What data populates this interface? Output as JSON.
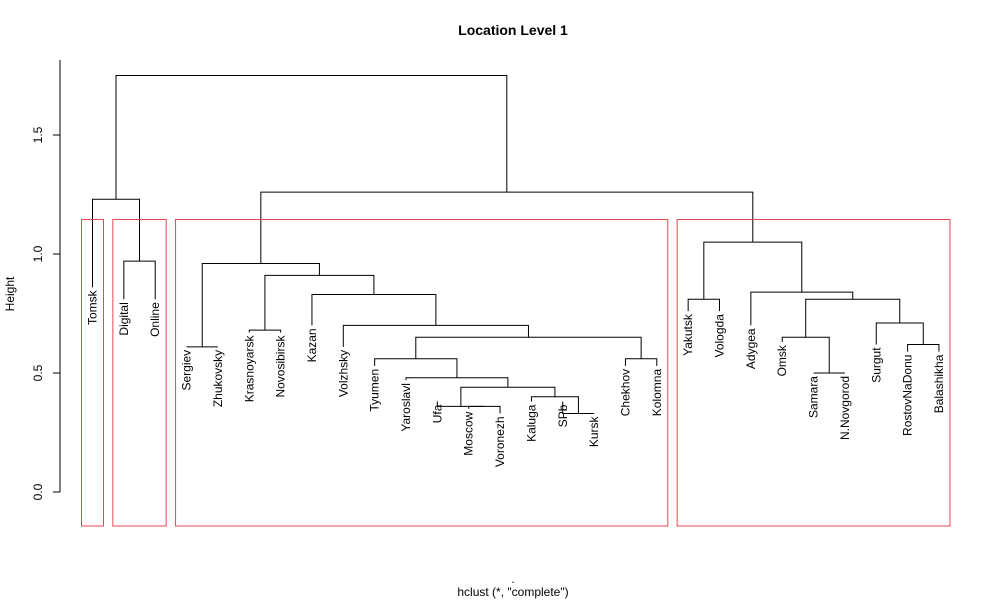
{
  "chart_data": {
    "type": "dendrogram",
    "title": "Location Level 1",
    "ylabel": "Height",
    "xlabel": "hclust (*, \"complete\")",
    "xlabel_top": ".",
    "ylim": [
      0,
      1.75
    ],
    "yticks": [
      0.0,
      0.5,
      1.0,
      1.5
    ],
    "ytick_labels": [
      "0.0",
      "0.5",
      "1.0",
      "1.5"
    ],
    "leaves": [
      "Tomsk",
      "Digital",
      "Online",
      "Sergiev",
      "Zhukovsky",
      "Krasnoyarsk",
      "Novosibirsk",
      "Kazan",
      "Volzhsky",
      "Tyumen",
      "Yaroslavl",
      "Ufa",
      "Moscow",
      "Voronezh",
      "Kaluga",
      "SPb",
      "Kursk",
      "Chekhov",
      "Kolomna",
      "Yakutsk",
      "Vologda",
      "Adygea",
      "Omsk",
      "Samara",
      "N.Novgorod",
      "Surgut",
      "RostovNaDonu",
      "Balashikha"
    ],
    "leaf_heights": [
      0.86,
      0.81,
      0.81,
      0.61,
      0.61,
      0.67,
      0.67,
      0.7,
      0.61,
      0.53,
      0.47,
      0.38,
      0.35,
      0.33,
      0.38,
      0.38,
      0.33,
      0.53,
      0.53,
      0.76,
      0.76,
      0.7,
      0.63,
      0.5,
      0.5,
      0.62,
      0.59,
      0.59
    ],
    "merges": [
      {
        "left": "Digital",
        "right": "Online",
        "height": 0.97
      },
      {
        "left": "Tomsk",
        "right": "Digital+Online",
        "height": 1.23
      },
      {
        "left": "Sergiev",
        "right": "Zhukovsky",
        "height": 0.61
      },
      {
        "left": "Krasnoyarsk",
        "right": "Novosibirsk",
        "height": 0.68
      },
      {
        "left": "Moscow",
        "right": "Voronezh",
        "height": 0.36
      },
      {
        "left": "SPb",
        "right": "Kursk",
        "height": 0.33
      },
      {
        "left": "Ufa",
        "right": "Moscow+Voronezh",
        "height": 0.36
      },
      {
        "left": "Kaluga",
        "right": "SPb+Kursk",
        "height": 0.4
      },
      {
        "left": "(Ufa,Moscow,Voronezh)",
        "right": "(Kaluga,SPb,Kursk)",
        "height": 0.44
      },
      {
        "left": "Yaroslavl",
        "right": "(Ufa..Kursk)",
        "height": 0.48
      },
      {
        "left": "Tyumen",
        "right": "(Yaroslavl..Kursk)",
        "height": 0.56
      },
      {
        "left": "Chekhov",
        "right": "Kolomna",
        "height": 0.56
      },
      {
        "left": "(Tyumen..Kursk)",
        "right": "(Chekhov,Kolomna)",
        "height": 0.65
      },
      {
        "left": "Volzhsky",
        "right": "(Tyumen..Kolomna)",
        "height": 0.7
      },
      {
        "left": "Kazan",
        "right": "(Volzhsky..Kolomna)",
        "height": 0.83
      },
      {
        "left": "(Krasnoyarsk,Novosibirsk)",
        "right": "(Kazan..Kolomna)",
        "height": 0.91
      },
      {
        "left": "(Sergiev,Zhukovsky)",
        "right": "(Krasnoyarsk..Kolomna)",
        "height": 0.96
      },
      {
        "left": "Yakutsk",
        "right": "Vologda",
        "height": 0.81
      },
      {
        "left": "Samara",
        "right": "N.Novgorod",
        "height": 0.5
      },
      {
        "left": "Omsk",
        "right": "(Samara,N.Novgorod)",
        "height": 0.65
      },
      {
        "left": "RostovNaDonu",
        "right": "Balashikha",
        "height": 0.62
      },
      {
        "left": "Surgut",
        "right": "(RostovNaDonu,Balashikha)",
        "height": 0.71
      },
      {
        "left": "(Omsk,Samara,N.Novgorod)",
        "right": "(Surgut..Balashikha)",
        "height": 0.81
      },
      {
        "left": "Adygea",
        "right": "(Omsk..Balashikha)",
        "height": 0.84
      },
      {
        "left": "(Yakutsk,Vologda)",
        "right": "(Adygea..Balashikha)",
        "height": 1.05
      },
      {
        "left": "(Sergiev..Kolomna)",
        "right": "(Yakutsk..Balashikha)",
        "height": 1.26
      },
      {
        "left": "(Tomsk,Digital,Online)",
        "right": "(Sergiev..Balashikha)",
        "height": 1.75
      }
    ],
    "cluster_boxes": [
      {
        "members": [
          "Tomsk"
        ],
        "color": "#e8474c"
      },
      {
        "members": [
          "Digital",
          "Online"
        ],
        "color": "#e8474c"
      },
      {
        "members": [
          "Sergiev",
          "Zhukovsky",
          "Krasnoyarsk",
          "Novosibirsk",
          "Kazan",
          "Volzhsky",
          "Tyumen",
          "Yaroslavl",
          "Ufa",
          "Moscow",
          "Voronezh",
          "Kaluga",
          "SPb",
          "Kursk",
          "Chekhov",
          "Kolomna"
        ],
        "color": "#e8474c"
      },
      {
        "members": [
          "Yakutsk",
          "Vologda",
          "Adygea",
          "Omsk",
          "Samara",
          "N.Novgorod",
          "Surgut",
          "RostovNaDonu",
          "Balashikha"
        ],
        "color": "#e8474c"
      }
    ],
    "grid": false,
    "legend": "none"
  }
}
